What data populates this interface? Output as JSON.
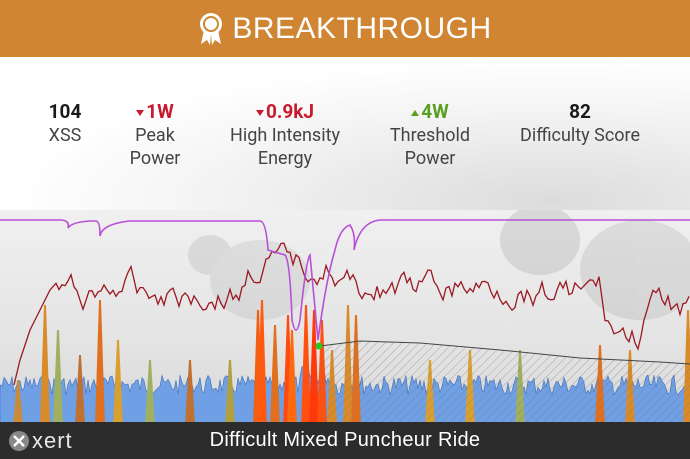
{
  "header": {
    "title": "BREAKTHROUGH",
    "icon": "award-ribbon-icon",
    "color": "#cf8532"
  },
  "stats": [
    {
      "value": "104",
      "label_line1": "XSS",
      "label_line2": "",
      "trend": "none"
    },
    {
      "value": "1W",
      "label_line1": "Peak",
      "label_line2": "Power",
      "trend": "down"
    },
    {
      "value": "0.9kJ",
      "label_line1": "High Intensity",
      "label_line2": "Energy",
      "trend": "down"
    },
    {
      "value": "4W",
      "label_line1": "Threshold",
      "label_line2": "Power",
      "trend": "up"
    },
    {
      "value": "82",
      "label_line1": "Difficulty Score",
      "label_line2": "",
      "trend": "none"
    }
  ],
  "colors": {
    "negative": "#c9192e",
    "positive": "#5aa020",
    "power_fill": "#6f9fe4",
    "heart_rate": "#9b1822",
    "mpa": "#b84fd8",
    "breakthrough_marker": "#22cc22"
  },
  "footer": {
    "logo": "xert",
    "ride_name": "Difficult Mixed Puncheur Ride"
  }
}
